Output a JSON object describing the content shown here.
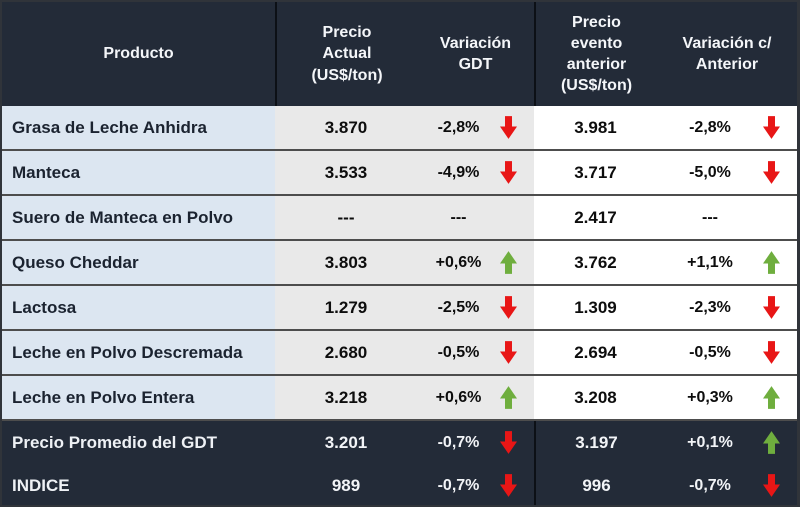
{
  "ui": {
    "header": {
      "producto": "Producto",
      "precio_actual": "Precio\nActual\n(US$/ton)",
      "variacion_gdt": "Variación\nGDT",
      "precio_evento": "Precio\nevento\nanterior\n(US$/ton)",
      "variacion_anterior": "Variación c/\nAnterior"
    }
  },
  "colors": {
    "header_bg": "#232b38",
    "product_cell_bg": "#dce6f1",
    "mid_cell_bg": "#e9e9e9",
    "right_cell_bg": "#ffffff",
    "divider": "#4d4d4d",
    "arrow_down": "#e81616",
    "arrow_up": "#6fae3e"
  },
  "chart_data": {
    "type": "table",
    "columns": [
      "Producto",
      "Precio Actual (US$/ton)",
      "Variación GDT",
      "Precio evento anterior (US$/ton)",
      "Variación c/ Anterior"
    ],
    "rows": [
      {
        "producto": "Grasa de Leche Anhidra",
        "precio_actual": "3.870",
        "variacion_gdt": "-2,8%",
        "tendencia_gdt": "down",
        "precio_evento_anterior": "3.981",
        "variacion_c_anterior": "-2,8%",
        "tendencia_anterior": "down"
      },
      {
        "producto": "Manteca",
        "precio_actual": "3.533",
        "variacion_gdt": "-4,9%",
        "tendencia_gdt": "down",
        "precio_evento_anterior": "3.717",
        "variacion_c_anterior": "-5,0%",
        "tendencia_anterior": "down"
      },
      {
        "producto": "Suero de Manteca en Polvo",
        "precio_actual": "---",
        "variacion_gdt": "---",
        "tendencia_gdt": "none",
        "precio_evento_anterior": "2.417",
        "variacion_c_anterior": "---",
        "tendencia_anterior": "none"
      },
      {
        "producto": "Queso Cheddar",
        "precio_actual": "3.803",
        "variacion_gdt": "+0,6%",
        "tendencia_gdt": "up",
        "precio_evento_anterior": "3.762",
        "variacion_c_anterior": "+1,1%",
        "tendencia_anterior": "up"
      },
      {
        "producto": "Lactosa",
        "precio_actual": "1.279",
        "variacion_gdt": "-2,5%",
        "tendencia_gdt": "down",
        "precio_evento_anterior": "1.309",
        "variacion_c_anterior": "-2,3%",
        "tendencia_anterior": "down"
      },
      {
        "producto": "Leche en Polvo Descremada",
        "precio_actual": "2.680",
        "variacion_gdt": "-0,5%",
        "tendencia_gdt": "down",
        "precio_evento_anterior": "2.694",
        "variacion_c_anterior": "-0,5%",
        "tendencia_anterior": "down"
      },
      {
        "producto": "Leche en Polvo Entera",
        "precio_actual": "3.218",
        "variacion_gdt": "+0,6%",
        "tendencia_gdt": "up",
        "precio_evento_anterior": "3.208",
        "variacion_c_anterior": "+0,3%",
        "tendencia_anterior": "up"
      }
    ],
    "summary_rows": [
      {
        "producto": "Precio Promedio del GDT",
        "precio_actual": "3.201",
        "variacion_gdt": "-0,7%",
        "tendencia_gdt": "down",
        "precio_evento_anterior": "3.197",
        "variacion_c_anterior": "+0,1%",
        "tendencia_anterior": "up"
      },
      {
        "producto": "INDICE",
        "precio_actual": "989",
        "variacion_gdt": "-0,7%",
        "tendencia_gdt": "down",
        "precio_evento_anterior": "996",
        "variacion_c_anterior": "-0,7%",
        "tendencia_anterior": "down"
      }
    ]
  }
}
